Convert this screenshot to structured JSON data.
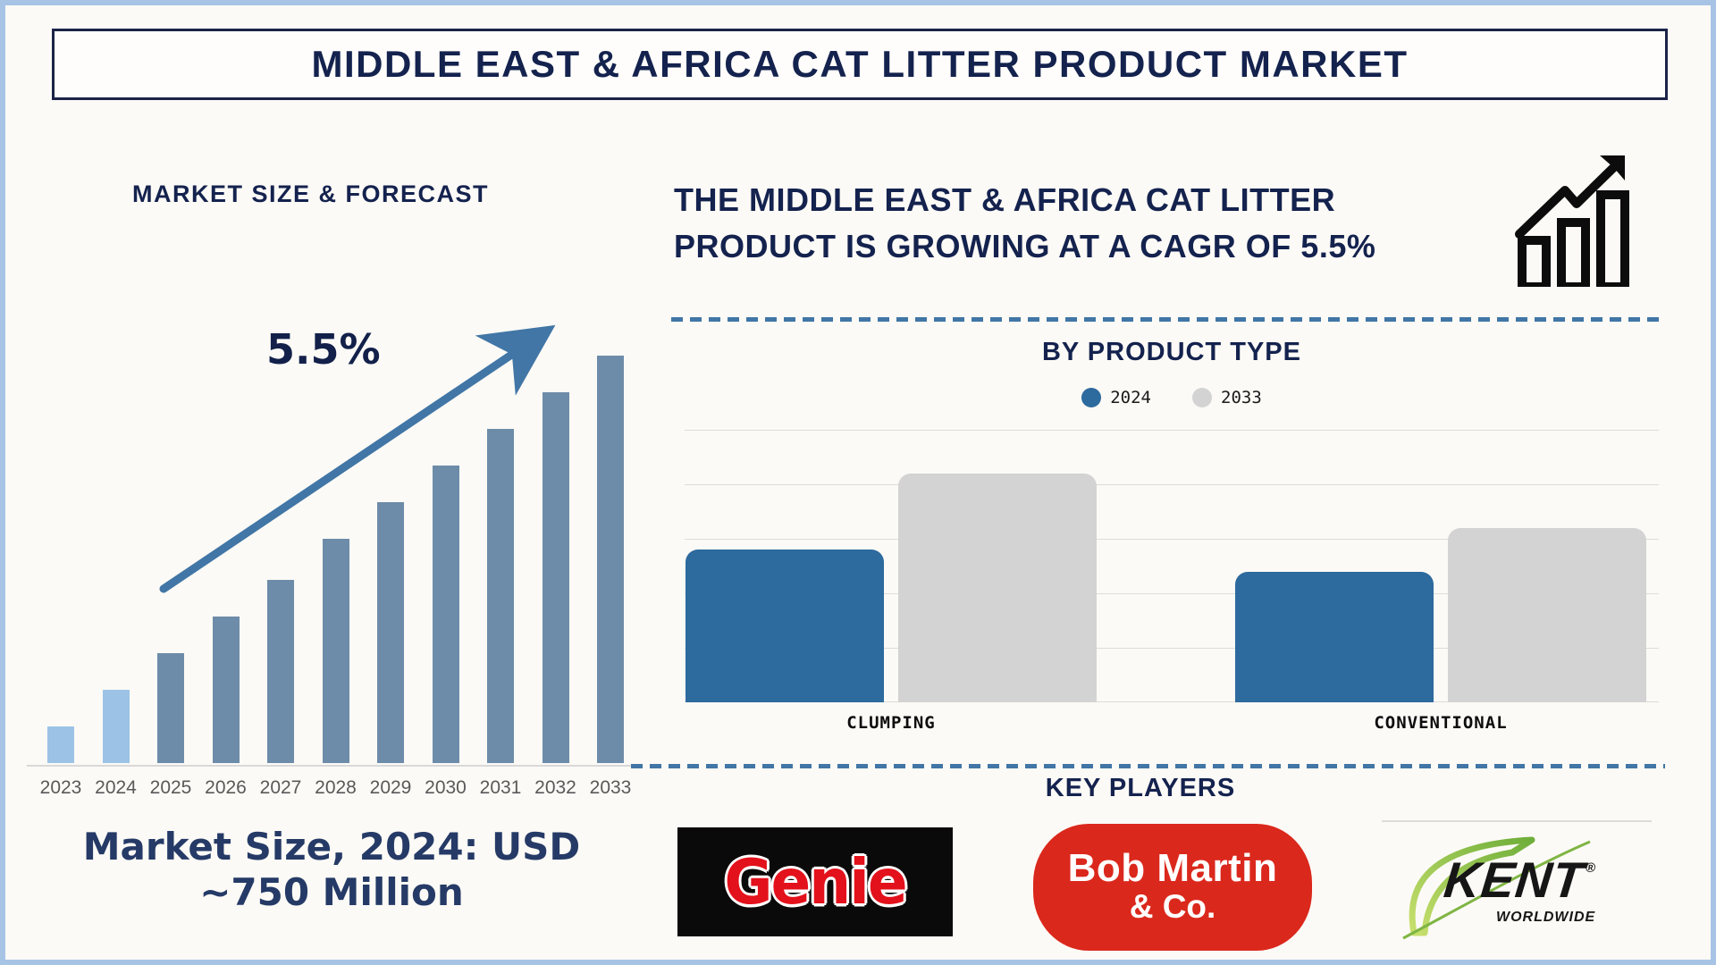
{
  "page": {
    "title": "MIDDLE EAST & AFRICA CAT LITTER PRODUCT MARKET"
  },
  "left_chart": {
    "title": "MARKET SIZE & FORECAST",
    "growth_label": "5.5%",
    "caption_line1": "Market Size, 2024: USD",
    "caption_line2": "~750 Million"
  },
  "right_top": {
    "headline": "THE MIDDLE EAST & AFRICA CAT LITTER PRODUCT IS GROWING AT A CAGR OF 5.5%"
  },
  "product_chart": {
    "title": "BY PRODUCT TYPE"
  },
  "key_players": {
    "title": "KEY PLAYERS",
    "genie": {
      "text": "Genie"
    },
    "bob_martin": {
      "line1": "Bob Martin",
      "line2": "& Co."
    },
    "kent": {
      "text": "KENT",
      "reg": "®",
      "sub": "WORLDWIDE"
    }
  },
  "colors": {
    "navy_text": "#14224E",
    "frame_border": "#A7C4E4",
    "steel_bar": "#6D8CA9",
    "light_blue_bar": "#9CC3E6",
    "arrow_and_dash": "#4176A6",
    "blue_2024": "#2D6A9E",
    "gray_2033": "#D3D3D3",
    "gridline": "#DCDCDC",
    "year_label": "#595959",
    "genie_red": "#E3111B",
    "bob_martin_red": "#DB281C",
    "kent_green": "#8CC63F"
  },
  "chart_data": [
    {
      "type": "bar",
      "id": "market-size-forecast",
      "title": "MARKET SIZE & FORECAST",
      "categories": [
        "2023",
        "2024",
        "2025",
        "2026",
        "2027",
        "2028",
        "2029",
        "2030",
        "2031",
        "2032",
        "2033"
      ],
      "values": [
        9,
        18,
        27,
        36,
        45,
        55,
        64,
        73,
        82,
        91,
        100
      ],
      "value_note": "relative bar heights, no y-axis shown; 2024 market size is USD ~750 million and series grows at 5.5% CAGR through 2033",
      "bar_colors": [
        "#9CC3E6",
        "#9CC3E6",
        "#6D8CA9",
        "#6D8CA9",
        "#6D8CA9",
        "#6D8CA9",
        "#6D8CA9",
        "#6D8CA9",
        "#6D8CA9",
        "#6D8CA9",
        "#6D8CA9"
      ],
      "annotation": "5.5% growth arrow pointing up-right",
      "xlabel": "",
      "ylabel": "",
      "grid": false
    },
    {
      "type": "bar",
      "id": "by-product-type",
      "title": "BY PRODUCT TYPE",
      "categories": [
        "CLUMPING",
        "CONVENTIONAL"
      ],
      "series": [
        {
          "name": "2024",
          "color": "#2D6A9E",
          "values": [
            56,
            48
          ]
        },
        {
          "name": "2033",
          "color": "#D3D3D3",
          "values": [
            84,
            64
          ]
        }
      ],
      "value_note": "relative bar heights, no y-axis labels shown; 2033 exceeds 2024 for both product types",
      "grid": true,
      "legend_position": "top"
    }
  ]
}
